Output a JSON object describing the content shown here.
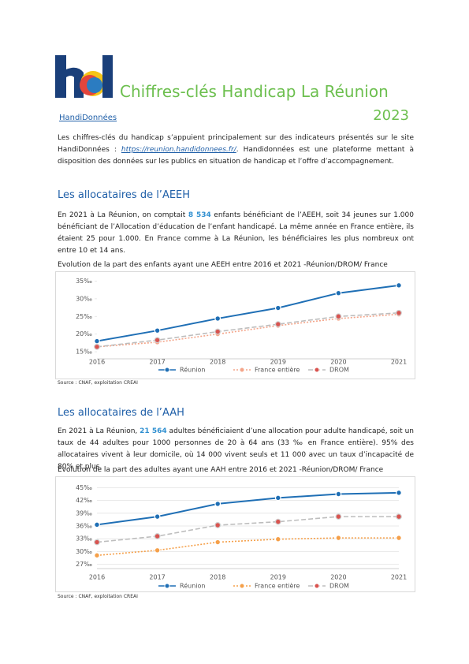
{
  "header": {
    "title": "Chiffres-clés Handicap La Réunion",
    "year": "2023",
    "link": "HandiDonnées"
  },
  "intro": {
    "text_before": "Les chiffres-clés du handicap s’appuient principalement sur des indicateurs présentés sur le site HandiDonnées : ",
    "url": "https://reunion.handidonnees.fr/",
    "text_after": ". Handidonnées est une plateforme mettant à disposition des données sur les publics en situation de handicap et l’offre d’accompagnement."
  },
  "sections": [
    {
      "heading": "Les allocataires de l’AEEH",
      "text_before": "En 2021 à La Réunion, on comptait ",
      "highlight": "8 534",
      "text_after": " enfants bénéficiant de l’AEEH, soit 34 jeunes sur 1.000 bénéficiant de l’Allocation d’éducation de l’enfant handicapé. La même année en France entière, ils étaient 25 pour 1.000. En France comme à La Réunion, les bénéficiaires les plus nombreux ont entre 10 et 14 ans.",
      "source": "Source : CNAF, exploitation CREAI"
    },
    {
      "heading": "Les allocataires de l’AAH",
      "text_before": "En 2021 à La Réunion, ",
      "highlight": "21 564",
      "text_after": " adultes bénéficiaient d’une allocation pour adulte handicapé, soit un taux de 44 adultes pour 1000 personnes de 20 à 64 ans (33 ‰ en France entière). 95% des allocataires vivent à leur domicile, où 14 000 vivent seuls et 11 000 avec un taux d’incapacité de 80% et plus.",
      "source": "Source : CNAF, exploitation CREAI"
    }
  ],
  "chart_data": [
    {
      "type": "line",
      "title": "Evolution de la part des enfants ayant une AEEH entre 2016 et 2021 -Réunion/DROM/ France",
      "categories": [
        "2016",
        "2017",
        "2018",
        "2019",
        "2020",
        "2021"
      ],
      "ylim": [
        13,
        36
      ],
      "grid": false,
      "yticks": [
        {
          "value": 15,
          "label": "15‰"
        },
        {
          "value": 20,
          "label": "20‰"
        },
        {
          "value": 25,
          "label": "25‰"
        },
        {
          "value": 30,
          "label": "30‰"
        },
        {
          "value": 35,
          "label": "35‰"
        }
      ],
      "series": [
        {
          "name": "Réunion",
          "color": "#1f6fb5",
          "marker_color": "#1f6fb5",
          "style": "solid",
          "values": [
            18.0,
            21.0,
            24.4,
            27.4,
            31.6,
            33.8
          ]
        },
        {
          "name": "France entière",
          "color": "#f4a58a",
          "marker_color": "#f4a58a",
          "style": "dotted",
          "values": [
            16.4,
            17.7,
            20.0,
            22.4,
            24.4,
            25.6
          ]
        },
        {
          "name": "DROM",
          "color": "#bdbdbd",
          "marker_color": "#d9534f",
          "style": "dashed",
          "values": [
            16.4,
            18.3,
            20.7,
            22.8,
            25.0,
            26.0
          ]
        }
      ]
    },
    {
      "type": "line",
      "title": "Evolution de la part des adultes ayant une AAH entre 2016 et 2021 -Réunion/DROM/ France",
      "categories": [
        "2016",
        "2017",
        "2018",
        "2019",
        "2020",
        "2021"
      ],
      "ylim": [
        26,
        46
      ],
      "grid": true,
      "yticks": [
        {
          "value": 27,
          "label": "27‰"
        },
        {
          "value": 30,
          "label": "30‰"
        },
        {
          "value": 33,
          "label": "33‰"
        },
        {
          "value": 36,
          "label": "36‰"
        },
        {
          "value": 39,
          "label": "39‰"
        },
        {
          "value": 42,
          "label": "42‰"
        },
        {
          "value": 45,
          "label": "45‰"
        }
      ],
      "series": [
        {
          "name": "Réunion",
          "color": "#1f6fb5",
          "marker_color": "#1f6fb5",
          "style": "solid",
          "values": [
            36.3,
            38.2,
            41.2,
            42.6,
            43.5,
            43.8
          ]
        },
        {
          "name": "France entière",
          "color": "#f5a04a",
          "marker_color": "#f5a04a",
          "style": "dotted",
          "values": [
            29.1,
            30.3,
            32.2,
            32.9,
            33.2,
            33.2
          ]
        },
        {
          "name": "DROM",
          "color": "#bdbdbd",
          "marker_color": "#d9534f",
          "style": "dashed",
          "values": [
            32.2,
            33.6,
            36.2,
            37.0,
            38.2,
            38.2
          ]
        }
      ]
    }
  ]
}
